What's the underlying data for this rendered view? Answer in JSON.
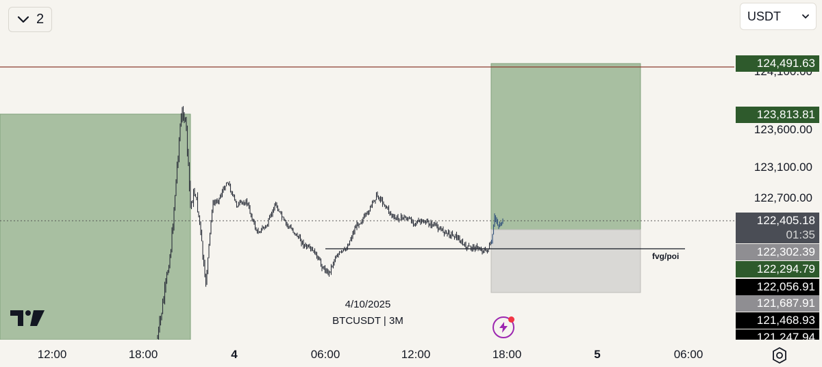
{
  "toolbar": {
    "collapse_count": "2",
    "currency": "USDT"
  },
  "legend": {
    "date": "4/10/2025",
    "symbol": "BTCUSDT | 3M"
  },
  "annotation": {
    "fvg_label": "fvg/poi"
  },
  "price_axis": {
    "ticks": [
      "124,100.00",
      "123,600.00",
      "123,100.00",
      "122,700.00"
    ],
    "labels": [
      {
        "text": "124,491.63",
        "color": "#2e5a2c"
      },
      {
        "text": "123,813.81",
        "color": "#2e5a2c"
      },
      {
        "text": "122,405.18",
        "sub": "01:35",
        "color": "#4a4d55"
      },
      {
        "text": "122,302.39",
        "color": "#8f8e92"
      },
      {
        "text": "122,294.79",
        "color": "#2e5a2c"
      },
      {
        "text": "122,056.91",
        "color": "#000000"
      },
      {
        "text": "121,687.91",
        "color": "#8f8e92"
      },
      {
        "text": "121,468.93",
        "color": "#000000"
      },
      {
        "text": "121,247.94",
        "color": "#000000"
      }
    ]
  },
  "time_axis": {
    "labels": [
      {
        "text": "12:00",
        "bold": false
      },
      {
        "text": "18:00",
        "bold": false
      },
      {
        "text": "4",
        "bold": true
      },
      {
        "text": "06:00",
        "bold": false
      },
      {
        "text": "12:00",
        "bold": false
      },
      {
        "text": "18:00",
        "bold": false
      },
      {
        "text": "5",
        "bold": true
      },
      {
        "text": "06:00",
        "bold": false
      }
    ]
  },
  "colors": {
    "profit_zone": "#a8bfa1",
    "loss_zone": "#d9d8d5",
    "price_line": "#8b3a2f",
    "candle": "#2a2e39"
  },
  "icons": [
    "chevron-down-icon",
    "tradingview-logo",
    "lightning-icon",
    "settings-icon"
  ]
}
